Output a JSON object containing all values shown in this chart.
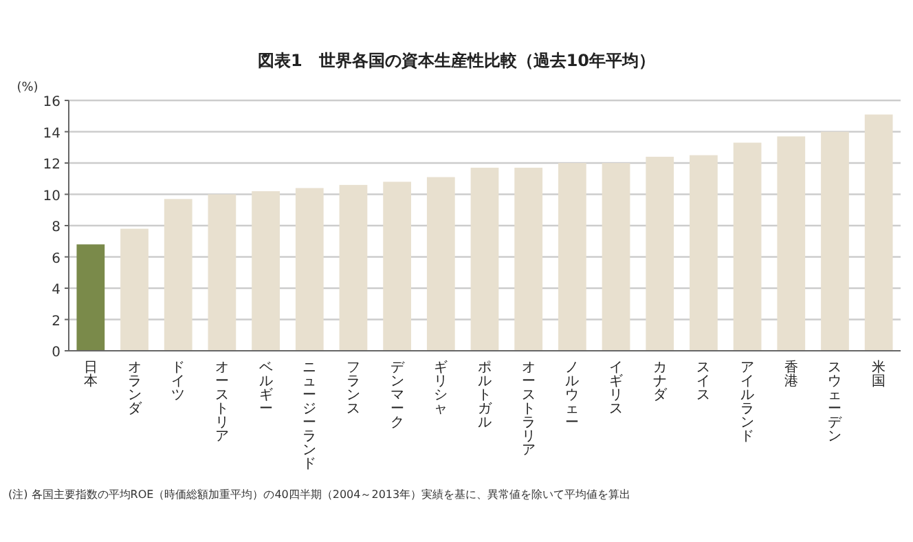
{
  "chart_data": {
    "type": "bar",
    "title": "図表1　世界各国の資本生産性比較（過去10年平均）",
    "ylabel": "(%)",
    "categories": [
      "日本",
      "オランダ",
      "ドイツ",
      "オーストリア",
      "ベルギー",
      "ニュージーランド",
      "フランス",
      "デンマーク",
      "ギリシャ",
      "ポルトガル",
      "オーストラリア",
      "ノルウェー",
      "イギリス",
      "カナダ",
      "スイス",
      "アイルランド",
      "香港",
      "スウェーデン",
      "米国"
    ],
    "values": [
      6.8,
      7.8,
      9.7,
      10.0,
      10.2,
      10.4,
      10.6,
      10.8,
      11.1,
      11.7,
      11.7,
      12.0,
      12.0,
      12.4,
      12.5,
      13.3,
      13.7,
      14.0,
      15.1
    ],
    "colors": [
      "#7a8a4a",
      "#e8e0cf",
      "#e8e0cf",
      "#e8e0cf",
      "#e8e0cf",
      "#e8e0cf",
      "#e8e0cf",
      "#e8e0cf",
      "#e8e0cf",
      "#e8e0cf",
      "#e8e0cf",
      "#e8e0cf",
      "#e8e0cf",
      "#e8e0cf",
      "#e8e0cf",
      "#e8e0cf",
      "#e8e0cf",
      "#e8e0cf",
      "#e8e0cf"
    ],
    "ylim": [
      0,
      16
    ],
    "yticks": [
      0,
      2,
      4,
      6,
      8,
      10,
      12,
      14,
      16
    ],
    "grid": "y",
    "annotations": [
      "(注) 各国主要指数の平均ROE（時価総額加重平均）の40四半期（2004～2013年）実績を基に、異常値を除いて平均値を算出"
    ]
  }
}
